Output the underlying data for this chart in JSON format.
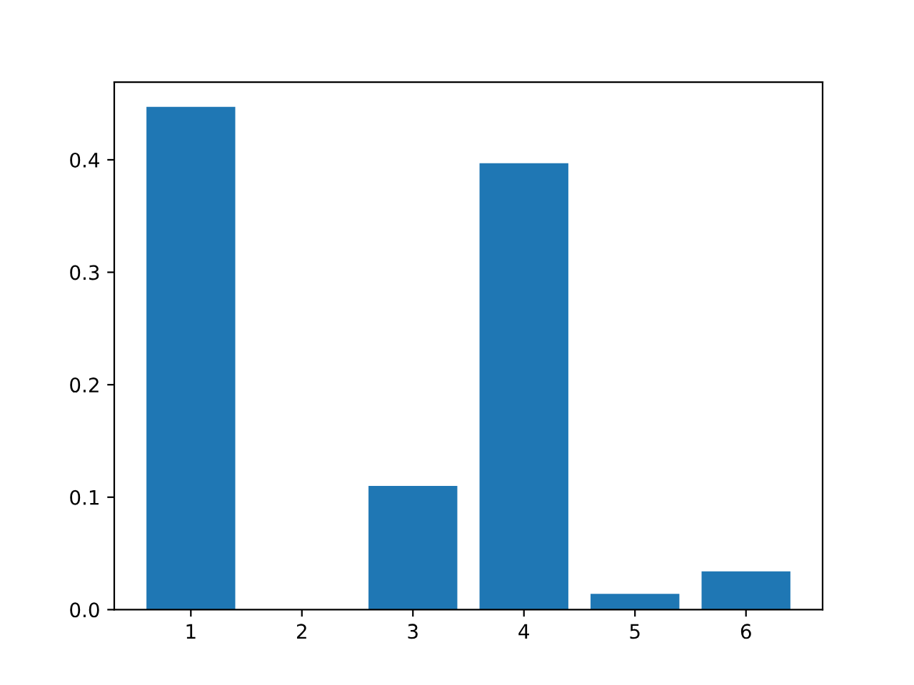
{
  "chart_data": {
    "type": "bar",
    "x": [
      1,
      2,
      3,
      4,
      5,
      6
    ],
    "values": [
      0.447,
      0,
      0.11,
      0.397,
      0.014,
      0.034
    ],
    "color": "#1f77b4",
    "xlim": [
      0.31,
      6.69
    ],
    "xticks": [
      1,
      2,
      3,
      4,
      5,
      6
    ],
    "ylim": [
      0,
      0.469
    ],
    "yticks": [
      {
        "value": 0,
        "label": "0.0"
      },
      0.1,
      0.2,
      0.3,
      0.4
    ],
    "grid": false
  }
}
